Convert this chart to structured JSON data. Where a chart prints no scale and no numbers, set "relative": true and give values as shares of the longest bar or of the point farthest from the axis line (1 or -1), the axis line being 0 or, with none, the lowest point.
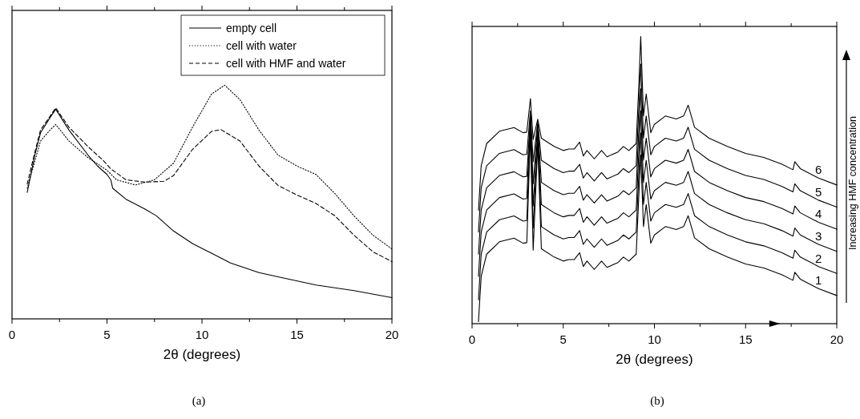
{
  "chart_data": [
    {
      "type": "line",
      "relative": true,
      "xlabel": "2θ (degrees)",
      "xlim": [
        0,
        20
      ],
      "xticks": [
        0,
        {
          "value": 2.5,
          "label": null
        },
        5,
        {
          "value": 7.5,
          "label": null
        },
        10,
        {
          "value": 12.5,
          "label": null
        },
        15,
        {
          "value": 17.5,
          "label": null
        },
        20
      ],
      "legend": "top right",
      "annotations": [
        "(a)"
      ],
      "series": [
        {
          "name": "empty cell",
          "color": "#000000",
          "line_style": "solid",
          "x": [
            0.8,
            1.2,
            1.5,
            2.0,
            2.3,
            3.0,
            4.0,
            4.5,
            5.0,
            5.2,
            5.3,
            6.0,
            7.0,
            7.6,
            8.5,
            9.5,
            10.5,
            11.5,
            13,
            14,
            16,
            18,
            20
          ],
          "values": [
            0.541,
            0.701,
            0.796,
            0.861,
            0.897,
            0.808,
            0.701,
            0.654,
            0.618,
            0.595,
            0.559,
            0.512,
            0.47,
            0.441,
            0.376,
            0.322,
            0.281,
            0.239,
            0.198,
            0.18,
            0.145,
            0.121,
            0.091
          ]
        },
        {
          "name": "cell with water",
          "color": "#000000",
          "line_style": "dotted",
          "x": [
            0.8,
            1.5,
            2.0,
            2.3,
            3.0,
            4.0,
            5.0,
            5.5,
            6.5,
            7.5,
            8.5,
            9.5,
            10.5,
            11.2,
            12,
            13,
            14,
            15,
            16,
            17,
            18,
            19,
            20
          ],
          "values": [
            0.559,
            0.761,
            0.808,
            0.832,
            0.761,
            0.69,
            0.636,
            0.595,
            0.573,
            0.595,
            0.666,
            0.82,
            0.962,
            1.0,
            0.938,
            0.808,
            0.701,
            0.654,
            0.618,
            0.536,
            0.441,
            0.358,
            0.299
          ]
        },
        {
          "name": "cell with HMF and water",
          "color": "#000000",
          "line_style": "dashed",
          "x": [
            0.8,
            1.2,
            1.5,
            2.0,
            2.3,
            3.0,
            4.0,
            4.8,
            5.2,
            6.0,
            7.0,
            8.0,
            8.5,
            9.5,
            10.5,
            11.0,
            12,
            13,
            14,
            15,
            16,
            17,
            18,
            19,
            20
          ],
          "values": [
            0.577,
            0.713,
            0.808,
            0.867,
            0.903,
            0.82,
            0.737,
            0.678,
            0.642,
            0.595,
            0.585,
            0.589,
            0.613,
            0.725,
            0.802,
            0.81,
            0.761,
            0.654,
            0.571,
            0.53,
            0.494,
            0.441,
            0.358,
            0.287,
            0.245
          ]
        }
      ]
    },
    {
      "type": "line",
      "relative": true,
      "xlabel": "2θ (degrees)",
      "xlim": [
        0,
        20
      ],
      "xticks": [
        0,
        {
          "value": 2.5,
          "label": null
        },
        5,
        {
          "value": 7.5,
          "label": null
        },
        10,
        {
          "value": 12.5,
          "label": null
        },
        15,
        {
          "value": 17.5,
          "label": null
        },
        20
      ],
      "annotations": [
        "Increasing HMF concentration",
        "(b)"
      ],
      "x": [
        0.35,
        0.5,
        0.8,
        1.5,
        2.3,
        2.8,
        3.0,
        3.2,
        3.35,
        3.6,
        3.8,
        4.5,
        5.0,
        5.3,
        5.6,
        5.9,
        6.1,
        6.3,
        6.7,
        7.1,
        7.4,
        8.0,
        8.3,
        8.6,
        9.0,
        9.15,
        9.25,
        9.4,
        9.55,
        9.8,
        10.0,
        10.6,
        11.2,
        11.6,
        11.85,
        12.2,
        13,
        14,
        15,
        16,
        17,
        17.6,
        17.7,
        18,
        19,
        20
      ],
      "series": [
        {
          "name": "1",
          "color": "#000000",
          "values": [
            0.007,
            0.165,
            0.242,
            0.285,
            0.298,
            0.28,
            0.282,
            0.664,
            0.256,
            0.626,
            0.261,
            0.232,
            0.218,
            0.223,
            0.223,
            0.247,
            0.199,
            0.218,
            0.189,
            0.218,
            0.196,
            0.213,
            0.232,
            0.218,
            0.242,
            0.453,
            0.587,
            0.338,
            0.415,
            0.28,
            0.309,
            0.338,
            0.328,
            0.338,
            0.376,
            0.299,
            0.261,
            0.232,
            0.208,
            0.194,
            0.17,
            0.151,
            0.179,
            0.155,
            0.122,
            0.098
          ]
        },
        {
          "name": "2",
          "color": "#000000",
          "values": [
            0.083,
            0.242,
            0.319,
            0.362,
            0.375,
            0.357,
            0.359,
            0.688,
            0.333,
            0.645,
            0.338,
            0.309,
            0.295,
            0.3,
            0.3,
            0.324,
            0.276,
            0.295,
            0.266,
            0.295,
            0.273,
            0.29,
            0.309,
            0.295,
            0.319,
            0.53,
            0.664,
            0.415,
            0.492,
            0.357,
            0.386,
            0.415,
            0.405,
            0.415,
            0.453,
            0.376,
            0.338,
            0.309,
            0.285,
            0.271,
            0.247,
            0.228,
            0.256,
            0.232,
            0.199,
            0.175
          ]
        },
        {
          "name": "3",
          "color": "#000000",
          "values": [
            0.165,
            0.319,
            0.396,
            0.439,
            0.452,
            0.434,
            0.436,
            0.712,
            0.41,
            0.674,
            0.415,
            0.386,
            0.372,
            0.377,
            0.377,
            0.401,
            0.353,
            0.372,
            0.343,
            0.372,
            0.35,
            0.367,
            0.386,
            0.372,
            0.396,
            0.607,
            0.741,
            0.492,
            0.569,
            0.434,
            0.463,
            0.492,
            0.482,
            0.492,
            0.53,
            0.453,
            0.415,
            0.386,
            0.362,
            0.348,
            0.324,
            0.305,
            0.333,
            0.309,
            0.276,
            0.252
          ]
        },
        {
          "name": "4",
          "color": "#000000",
          "values": [
            0.242,
            0.396,
            0.473,
            0.516,
            0.529,
            0.511,
            0.513,
            0.722,
            0.487,
            0.693,
            0.492,
            0.463,
            0.449,
            0.454,
            0.454,
            0.478,
            0.43,
            0.449,
            0.42,
            0.449,
            0.427,
            0.444,
            0.463,
            0.449,
            0.473,
            0.684,
            0.818,
            0.569,
            0.646,
            0.511,
            0.54,
            0.569,
            0.559,
            0.569,
            0.607,
            0.53,
            0.492,
            0.463,
            0.439,
            0.425,
            0.401,
            0.382,
            0.41,
            0.386,
            0.353,
            0.329
          ]
        },
        {
          "name": "5",
          "color": "#000000",
          "values": [
            0.319,
            0.473,
            0.55,
            0.593,
            0.606,
            0.588,
            0.59,
            0.741,
            0.564,
            0.702,
            0.569,
            0.54,
            0.526,
            0.531,
            0.531,
            0.555,
            0.507,
            0.526,
            0.497,
            0.526,
            0.504,
            0.521,
            0.54,
            0.526,
            0.55,
            0.761,
            0.904,
            0.646,
            0.723,
            0.588,
            0.617,
            0.646,
            0.636,
            0.646,
            0.684,
            0.607,
            0.569,
            0.54,
            0.516,
            0.502,
            0.478,
            0.459,
            0.487,
            0.463,
            0.43,
            0.406
          ]
        },
        {
          "name": "6",
          "color": "#000000",
          "values": [
            0.395,
            0.55,
            0.627,
            0.67,
            0.683,
            0.665,
            0.667,
            0.784,
            0.641,
            0.712,
            0.646,
            0.617,
            0.603,
            0.608,
            0.608,
            0.632,
            0.584,
            0.603,
            0.574,
            0.603,
            0.581,
            0.598,
            0.617,
            0.603,
            0.627,
            0.838,
            1.0,
            0.723,
            0.8,
            0.665,
            0.694,
            0.723,
            0.713,
            0.723,
            0.761,
            0.684,
            0.646,
            0.617,
            0.593,
            0.579,
            0.555,
            0.536,
            0.564,
            0.54,
            0.507,
            0.483
          ]
        }
      ]
    }
  ]
}
